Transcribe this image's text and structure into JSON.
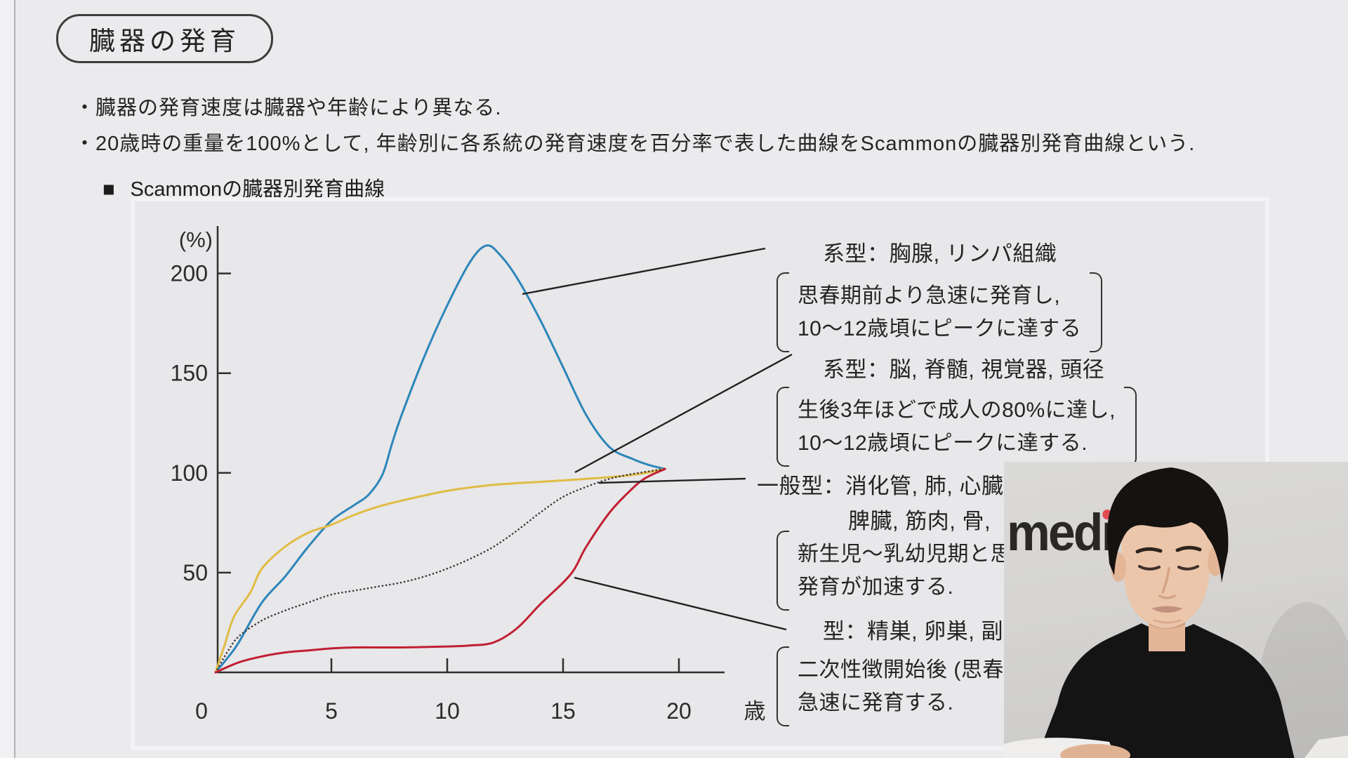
{
  "slide": {
    "title": "臓器の発育",
    "bullets": [
      "・臓器の発育速度は臓器や年齢により異なる.",
      "・20歳時の重量を100%として, 年齢別に各系統の発育速度を百分率で表した曲線をScammonの臓器別発育曲線という."
    ],
    "section": {
      "marker": "■",
      "heading": "Scammonの臓器別発育曲線"
    }
  },
  "chart_data": {
    "type": "line",
    "title": "Scammonの臓器別発育曲線",
    "ylabel": "(%)",
    "xlabel": "歳",
    "x_ticks": [
      0,
      5,
      10,
      15,
      20
    ],
    "y_ticks": [
      50,
      100,
      150,
      200
    ],
    "xlim": [
      0,
      21.5
    ],
    "ylim": [
      0,
      225
    ],
    "grid": false,
    "legend": "none (labeled by leader lines)",
    "series": [
      {
        "id": "lymphoid-curve",
        "color": "#2c86ba",
        "style": "solid",
        "points": [
          [
            0,
            0
          ],
          [
            0.5,
            7
          ],
          [
            1,
            15
          ],
          [
            2,
            35
          ],
          [
            3,
            48
          ],
          [
            4,
            63
          ],
          [
            5,
            76
          ],
          [
            6,
            84
          ],
          [
            6.6,
            89
          ],
          [
            7.2,
            99
          ],
          [
            7.6,
            114
          ],
          [
            8,
            128
          ],
          [
            9,
            158
          ],
          [
            10,
            184
          ],
          [
            11,
            206
          ],
          [
            11.7,
            214
          ],
          [
            12.3,
            209
          ],
          [
            13,
            198
          ],
          [
            14,
            177
          ],
          [
            15,
            153
          ],
          [
            16,
            129
          ],
          [
            17,
            113
          ],
          [
            18,
            107
          ],
          [
            18.7,
            104
          ],
          [
            19.4,
            102
          ]
        ]
      },
      {
        "id": "neural-curve",
        "color": "#e0bc45",
        "style": "solid",
        "points": [
          [
            0,
            0
          ],
          [
            0.4,
            14
          ],
          [
            0.8,
            28
          ],
          [
            1.5,
            40
          ],
          [
            2,
            52
          ],
          [
            3,
            63
          ],
          [
            4,
            70
          ],
          [
            5,
            74
          ],
          [
            6,
            79
          ],
          [
            7,
            83
          ],
          [
            8,
            86
          ],
          [
            10,
            91
          ],
          [
            12,
            94
          ],
          [
            14,
            95.5
          ],
          [
            16,
            97
          ],
          [
            18,
            99
          ],
          [
            19.4,
            102
          ]
        ]
      },
      {
        "id": "general-curve",
        "color": "#3a3a3a",
        "style": "dotted",
        "points": [
          [
            0,
            0
          ],
          [
            0.5,
            10
          ],
          [
            1,
            18
          ],
          [
            2,
            26
          ],
          [
            3,
            31
          ],
          [
            4,
            35
          ],
          [
            5,
            39
          ],
          [
            6,
            41
          ],
          [
            7,
            43
          ],
          [
            8,
            45
          ],
          [
            9,
            48
          ],
          [
            10,
            52
          ],
          [
            11,
            57
          ],
          [
            12,
            63
          ],
          [
            13,
            71
          ],
          [
            14,
            80
          ],
          [
            15,
            88
          ],
          [
            16,
            93
          ],
          [
            17,
            97
          ],
          [
            18,
            99.5
          ],
          [
            19.4,
            102
          ]
        ]
      },
      {
        "id": "genital-curve",
        "color": "#c11f33",
        "style": "solid",
        "points": [
          [
            0,
            0
          ],
          [
            1,
            5
          ],
          [
            2,
            8
          ],
          [
            3,
            10
          ],
          [
            4,
            11
          ],
          [
            5,
            12
          ],
          [
            6,
            12.5
          ],
          [
            8,
            12.5
          ],
          [
            10,
            13
          ],
          [
            11,
            13.5
          ],
          [
            12,
            15
          ],
          [
            13,
            22
          ],
          [
            14,
            34
          ],
          [
            15,
            45
          ],
          [
            15.5,
            52
          ],
          [
            16,
            63
          ],
          [
            17,
            80
          ],
          [
            17.8,
            90
          ],
          [
            18.5,
            97
          ],
          [
            19.4,
            102
          ]
        ]
      }
    ]
  },
  "annotations": [
    {
      "label": "系型：胸腺, リンパ組織",
      "note_lines": [
        "思春期前より急速に発育し,",
        "10〜12歳頃にピークに達する"
      ]
    },
    {
      "label": "系型：脳, 脊髄, 視覚器, 頭径",
      "note_lines": [
        "生後3年ほどで成人の80%に達し,",
        "10〜12歳頃にピークに達する."
      ]
    },
    {
      "label": "一般型：消化管, 肺, 心臓",
      "label_line2": "脾臓, 筋肉, 骨,",
      "note_lines": [
        "新生児〜乳幼児期と思",
        "発育が加速する."
      ]
    },
    {
      "label": "型：精巣, 卵巣, 副",
      "note_lines": [
        "二次性徴開始後 (思春期",
        "急速に発育する."
      ]
    }
  ],
  "webcam": {
    "logo_text": "medi",
    "logo_dot_color": "#e14b52"
  }
}
